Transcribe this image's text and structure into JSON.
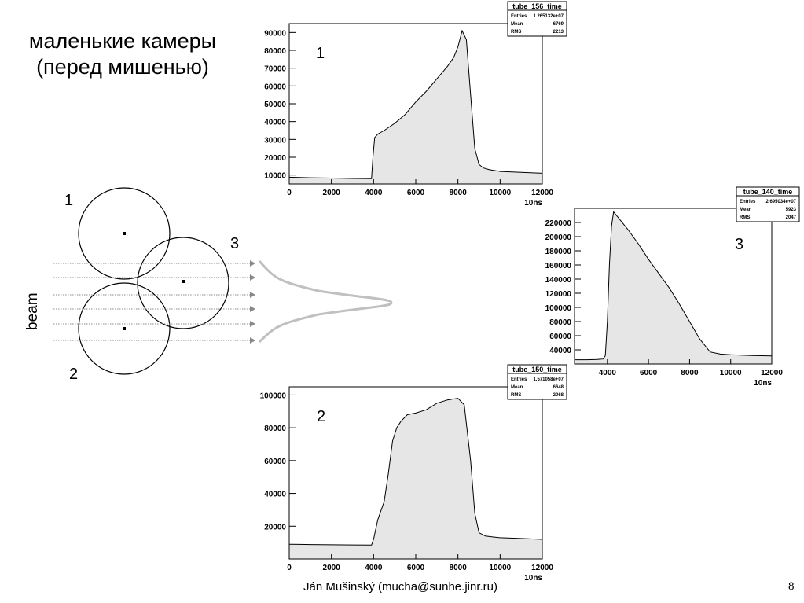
{
  "slide": {
    "title_line1": "маленькие камеры",
    "title_line2": "(перед мишенью)",
    "footer": "Ján Mušinský (mucha@sunhe.jinr.ru)",
    "page_number": "8"
  },
  "diagram": {
    "chamber_labels": [
      "1",
      "2",
      "3"
    ],
    "beam_label": "beam"
  },
  "colors": {
    "fill": "#e6e6e6",
    "line": "#000000",
    "beam": "#888888",
    "profile": "#c0c0c0"
  },
  "chart_data": [
    {
      "type": "area",
      "label": "1",
      "title": "tube_156_time",
      "stats": [
        {
          "name": "Entries",
          "value": "1.265132e+07"
        },
        {
          "name": "Mean",
          "value": "6769"
        },
        {
          "name": "RMS",
          "value": "2213"
        }
      ],
      "xlabel": "10ns",
      "xlim": [
        0,
        12000
      ],
      "ylim": [
        5000,
        95000
      ],
      "xticks": [
        0,
        2000,
        4000,
        6000,
        8000,
        10000,
        12000
      ],
      "xticklabels": [
        "0",
        "2000",
        "4000",
        "6000",
        "8000",
        "10000",
        "12000"
      ],
      "yticks": [
        10000,
        20000,
        30000,
        40000,
        50000,
        60000,
        70000,
        80000,
        90000
      ],
      "yticklabels": [
        "10000",
        "20000",
        "30000",
        "40000",
        "50000",
        "60000",
        "70000",
        "80000",
        "90000"
      ],
      "x": [
        0,
        1000,
        2000,
        3000,
        3900,
        3970,
        4050,
        4200,
        4500,
        5000,
        5500,
        6000,
        6500,
        7000,
        7500,
        7800,
        8000,
        8200,
        8400,
        8600,
        8800,
        9000,
        9200,
        9500,
        10000,
        11000,
        12000
      ],
      "y": [
        8800,
        8500,
        8300,
        8100,
        8000,
        20000,
        31000,
        33000,
        35000,
        39000,
        44000,
        51000,
        57000,
        64000,
        71000,
        76000,
        82000,
        91000,
        86000,
        55000,
        25000,
        16000,
        14000,
        13000,
        12000,
        11500,
        11000
      ]
    },
    {
      "type": "area",
      "label": "2",
      "title": "tube_150_time",
      "stats": [
        {
          "name": "Entries",
          "value": "1.571058e+07"
        },
        {
          "name": "Mean",
          "value": "6648"
        },
        {
          "name": "RMS",
          "value": "2068"
        }
      ],
      "xlabel": "10ns",
      "xlim": [
        0,
        12000
      ],
      "ylim": [
        0,
        105000
      ],
      "xticks": [
        0,
        2000,
        4000,
        6000,
        8000,
        10000,
        12000
      ],
      "xticklabels": [
        "0",
        "2000",
        "4000",
        "6000",
        "8000",
        "10000",
        "12000"
      ],
      "yticks": [
        20000,
        40000,
        60000,
        80000,
        100000
      ],
      "yticklabels": [
        "20000",
        "40000",
        "60000",
        "80000",
        "100000"
      ],
      "x": [
        0,
        1000,
        2000,
        3000,
        3900,
        4000,
        4200,
        4500,
        4700,
        4900,
        5100,
        5300,
        5600,
        6000,
        6500,
        7000,
        7500,
        8000,
        8300,
        8600,
        8800,
        9000,
        9300,
        9600,
        10000,
        11000,
        12000
      ],
      "y": [
        9000,
        8800,
        8700,
        8600,
        8500,
        12000,
        24000,
        35000,
        52000,
        72000,
        80000,
        84000,
        88000,
        89000,
        91000,
        95000,
        97000,
        98000,
        94000,
        60000,
        28000,
        16000,
        14000,
        13500,
        13000,
        12500,
        12000
      ]
    },
    {
      "type": "area",
      "label": "3",
      "title": "tube_140_time",
      "stats": [
        {
          "name": "Entries",
          "value": "2.695034e+07"
        },
        {
          "name": "Mean",
          "value": "5923"
        },
        {
          "name": "RMS",
          "value": "2047"
        }
      ],
      "xlabel": "10ns",
      "xlim": [
        2400,
        12000
      ],
      "ylim": [
        20000,
        240000
      ],
      "xticks": [
        4000,
        6000,
        8000,
        10000,
        12000
      ],
      "xticklabels": [
        "4000",
        "6000",
        "8000",
        "10000",
        "12000"
      ],
      "yticks": [
        40000,
        60000,
        80000,
        100000,
        120000,
        140000,
        160000,
        180000,
        200000,
        220000
      ],
      "yticklabels": [
        "40000",
        "60000",
        "80000",
        "100000",
        "120000",
        "140000",
        "160000",
        "180000",
        "200000",
        "220000"
      ],
      "x": [
        2400,
        3000,
        3500,
        3800,
        3900,
        4000,
        4100,
        4200,
        4300,
        4500,
        5000,
        5500,
        6000,
        6500,
        7000,
        7500,
        8000,
        8500,
        9000,
        9500,
        10000,
        11000,
        12000
      ],
      "y": [
        26000,
        26000,
        26500,
        27000,
        32000,
        80000,
        160000,
        215000,
        235000,
        228000,
        210000,
        190000,
        168000,
        148000,
        128000,
        105000,
        80000,
        55000,
        37000,
        34000,
        33000,
        32000,
        31500
      ]
    }
  ]
}
